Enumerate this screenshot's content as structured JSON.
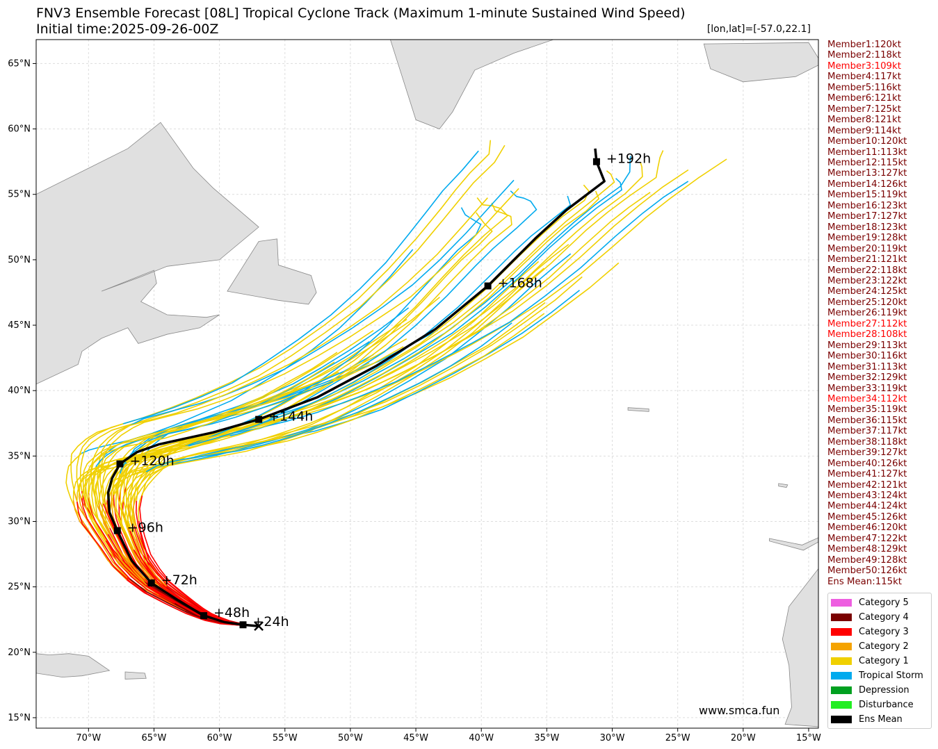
{
  "title_line1": "FNV3 Ensemble Forecast [08L] Tropical Cyclone Track (Maximum 1-minute Sustained Wind Speed)",
  "title_line2": "Initial time:2025-09-26-00Z",
  "coord_readout": "[lon,lat]=[-57.0,22.1]",
  "watermark": "www.smca.fun",
  "lat_ticks": [
    "65°N",
    "60°N",
    "55°N",
    "50°N",
    "45°N",
    "40°N",
    "35°N",
    "30°N",
    "25°N",
    "20°N",
    "15°N"
  ],
  "lon_ticks": [
    "70°W",
    "65°W",
    "60°W",
    "55°W",
    "50°W",
    "45°W",
    "40°W",
    "35°W",
    "30°W",
    "25°W",
    "20°W",
    "15°W"
  ],
  "colors": {
    "land": "#e0e0e0",
    "coast": "#888888",
    "grid": "#dddddd",
    "cat5": "#ee5ee0",
    "cat4": "#7a0000",
    "cat3": "#ff0000",
    "cat2": "#f5a300",
    "cat1": "#f0d000",
    "ts": "#00aaee",
    "dep": "#00a020",
    "dist": "#22ee22",
    "mean": "#000000"
  },
  "members": [
    {
      "text": "Member1:120kt",
      "red": false
    },
    {
      "text": "Member2:118kt",
      "red": false
    },
    {
      "text": "Member3:109kt",
      "red": true
    },
    {
      "text": "Member4:117kt",
      "red": false
    },
    {
      "text": "Member5:116kt",
      "red": false
    },
    {
      "text": "Member6:121kt",
      "red": false
    },
    {
      "text": "Member7:125kt",
      "red": false
    },
    {
      "text": "Member8:121kt",
      "red": false
    },
    {
      "text": "Member9:114kt",
      "red": false
    },
    {
      "text": "Member10:120kt",
      "red": false
    },
    {
      "text": "Member11:113kt",
      "red": false
    },
    {
      "text": "Member12:115kt",
      "red": false
    },
    {
      "text": "Member13:127kt",
      "red": false
    },
    {
      "text": "Member14:126kt",
      "red": false
    },
    {
      "text": "Member15:119kt",
      "red": false
    },
    {
      "text": "Member16:123kt",
      "red": false
    },
    {
      "text": "Member17:127kt",
      "red": false
    },
    {
      "text": "Member18:123kt",
      "red": false
    },
    {
      "text": "Member19:128kt",
      "red": false
    },
    {
      "text": "Member20:119kt",
      "red": false
    },
    {
      "text": "Member21:121kt",
      "red": false
    },
    {
      "text": "Member22:118kt",
      "red": false
    },
    {
      "text": "Member23:122kt",
      "red": false
    },
    {
      "text": "Member24:125kt",
      "red": false
    },
    {
      "text": "Member25:120kt",
      "red": false
    },
    {
      "text": "Member26:119kt",
      "red": false
    },
    {
      "text": "Member27:112kt",
      "red": true
    },
    {
      "text": "Member28:108kt",
      "red": true
    },
    {
      "text": "Member29:113kt",
      "red": false
    },
    {
      "text": "Member30:116kt",
      "red": false
    },
    {
      "text": "Member31:113kt",
      "red": false
    },
    {
      "text": "Member32:129kt",
      "red": false
    },
    {
      "text": "Member33:119kt",
      "red": false
    },
    {
      "text": "Member34:112kt",
      "red": true
    },
    {
      "text": "Member35:119kt",
      "red": false
    },
    {
      "text": "Member36:115kt",
      "red": false
    },
    {
      "text": "Member37:117kt",
      "red": false
    },
    {
      "text": "Member38:118kt",
      "red": false
    },
    {
      "text": "Member39:127kt",
      "red": false
    },
    {
      "text": "Member40:126kt",
      "red": false
    },
    {
      "text": "Member41:127kt",
      "red": false
    },
    {
      "text": "Member42:121kt",
      "red": false
    },
    {
      "text": "Member43:124kt",
      "red": false
    },
    {
      "text": "Member44:124kt",
      "red": false
    },
    {
      "text": "Member45:126kt",
      "red": false
    },
    {
      "text": "Member46:120kt",
      "red": false
    },
    {
      "text": "Member47:122kt",
      "red": false
    },
    {
      "text": "Member48:129kt",
      "red": false
    },
    {
      "text": "Member49:128kt",
      "red": false
    },
    {
      "text": "Member50:126kt",
      "red": false
    },
    {
      "text": "Ens Mean:115kt",
      "red": false
    }
  ],
  "legend": [
    {
      "label": "Category 5",
      "color": "#ee5ee0"
    },
    {
      "label": "Category 4",
      "color": "#7a0000"
    },
    {
      "label": "Category 3",
      "color": "#ff0000"
    },
    {
      "label": "Category 2",
      "color": "#f5a300"
    },
    {
      "label": "Category 1",
      "color": "#f0d000"
    },
    {
      "label": "Tropical Storm",
      "color": "#00aaee"
    },
    {
      "label": "Depression",
      "color": "#00a020"
    },
    {
      "label": "Disturbance",
      "color": "#22ee22"
    },
    {
      "label": "Ens Mean",
      "color": "#000000"
    }
  ],
  "ens_mean_track": {
    "points": [
      [
        -57.0,
        22.0
      ],
      [
        -58.2,
        22.1
      ],
      [
        -59.6,
        22.3
      ],
      [
        -61.2,
        22.8
      ],
      [
        -63.2,
        24.0
      ],
      [
        -65.2,
        25.3
      ],
      [
        -66.7,
        27.0
      ],
      [
        -67.8,
        29.3
      ],
      [
        -68.4,
        30.7
      ],
      [
        -68.5,
        32.2
      ],
      [
        -68.2,
        33.3
      ],
      [
        -67.6,
        34.4
      ],
      [
        -66.3,
        35.3
      ],
      [
        -64.6,
        35.9
      ],
      [
        -60.5,
        36.8
      ],
      [
        -57.0,
        37.8
      ],
      [
        -52.5,
        39.5
      ],
      [
        -48.0,
        41.9
      ],
      [
        -43.5,
        44.7
      ],
      [
        -39.5,
        48.0
      ],
      [
        -35.8,
        51.7
      ],
      [
        -33.5,
        53.8
      ],
      [
        -30.6,
        56.0
      ],
      [
        -31.0,
        57.0
      ],
      [
        -31.2,
        57.5
      ],
      [
        -31.3,
        58.5
      ]
    ],
    "markers": [
      {
        "label": "+24h",
        "lon": -58.2,
        "lat": 22.1
      },
      {
        "label": "+48h",
        "lon": -61.2,
        "lat": 22.8
      },
      {
        "label": "+72h",
        "lon": -65.2,
        "lat": 25.3
      },
      {
        "label": "+96h",
        "lon": -67.8,
        "lat": 29.3
      },
      {
        "label": "+120h",
        "lon": -67.6,
        "lat": 34.4
      },
      {
        "label": "+144h",
        "lon": -57.0,
        "lat": 37.8
      },
      {
        "label": "+168h",
        "lon": -39.5,
        "lat": 48.0
      },
      {
        "label": "+192h",
        "lon": -31.2,
        "lat": 57.5
      }
    ]
  }
}
